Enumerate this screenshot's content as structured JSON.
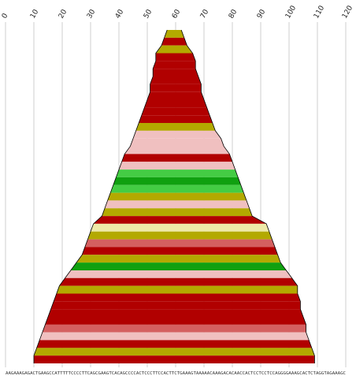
{
  "chart_data": {
    "type": "area",
    "title": "",
    "xlabel": "",
    "ylabel": "",
    "xlim": [
      0,
      120
    ],
    "x_ticks": [
      "0",
      "10",
      "20",
      "30",
      "40",
      "50",
      "60",
      "70",
      "80",
      "90",
      "100",
      "110",
      "120"
    ],
    "sequence": "AAGAAAGAGACTGAAGCCATTTTTCCCCTTCAGCGAAGTCACAGCCCCACTCCCTTCCACTTCTGAAAGTAAAAACAAAGACACAACCACTCCTCCTCCAGGGGAAAGCACTCTAGGTAGAAAGC",
    "grid": true,
    "legend": "none",
    "colors": {
      "deep_red": "#b10000",
      "olive": "#b3a900",
      "pink": "#f0c0c0",
      "light_green": "#44cc44",
      "green": "#10a010",
      "salmon": "#d46060",
      "cream": "#eee9a8"
    },
    "layers": [
      {
        "start": 57,
        "end": 62,
        "color": "olive"
      },
      {
        "start": 56,
        "end": 63,
        "color": "deep_red"
      },
      {
        "start": 55,
        "end": 64,
        "color": "olive"
      },
      {
        "start": 53,
        "end": 66,
        "color": "deep_red"
      },
      {
        "start": 53,
        "end": 67,
        "color": "deep_red"
      },
      {
        "start": 52,
        "end": 67,
        "color": "deep_red"
      },
      {
        "start": 52,
        "end": 68,
        "color": "deep_red"
      },
      {
        "start": 51,
        "end": 69,
        "color": "deep_red"
      },
      {
        "start": 51,
        "end": 69,
        "color": "deep_red"
      },
      {
        "start": 50,
        "end": 70,
        "color": "deep_red"
      },
      {
        "start": 49,
        "end": 71,
        "color": "deep_red"
      },
      {
        "start": 48,
        "end": 72,
        "color": "deep_red"
      },
      {
        "start": 47,
        "end": 73,
        "color": "olive"
      },
      {
        "start": 46,
        "end": 74,
        "color": "pink"
      },
      {
        "start": 45,
        "end": 76,
        "color": "pink"
      },
      {
        "start": 44,
        "end": 77,
        "color": "pink"
      },
      {
        "start": 42,
        "end": 79,
        "color": "deep_red"
      },
      {
        "start": 41,
        "end": 80,
        "color": "pink"
      },
      {
        "start": 40,
        "end": 81,
        "color": "light_green"
      },
      {
        "start": 39,
        "end": 82,
        "color": "green"
      },
      {
        "start": 38,
        "end": 83,
        "color": "light_green"
      },
      {
        "start": 37,
        "end": 84,
        "color": "olive"
      },
      {
        "start": 36,
        "end": 85,
        "color": "pink"
      },
      {
        "start": 35,
        "end": 86,
        "color": "olive"
      },
      {
        "start": 34,
        "end": 87,
        "color": "deep_red"
      },
      {
        "start": 31,
        "end": 92,
        "color": "cream"
      },
      {
        "start": 30,
        "end": 93,
        "color": "olive"
      },
      {
        "start": 29,
        "end": 94,
        "color": "salmon"
      },
      {
        "start": 28,
        "end": 95,
        "color": "deep_red"
      },
      {
        "start": 27,
        "end": 96,
        "color": "olive"
      },
      {
        "start": 25,
        "end": 97,
        "color": "green"
      },
      {
        "start": 23,
        "end": 99,
        "color": "pink"
      },
      {
        "start": 21,
        "end": 101,
        "color": "deep_red"
      },
      {
        "start": 19,
        "end": 103,
        "color": "olive"
      },
      {
        "start": 18,
        "end": 103,
        "color": "deep_red"
      },
      {
        "start": 17,
        "end": 104,
        "color": "deep_red"
      },
      {
        "start": 16,
        "end": 104,
        "color": "deep_red"
      },
      {
        "start": 15,
        "end": 105,
        "color": "deep_red"
      },
      {
        "start": 14,
        "end": 106,
        "color": "salmon"
      },
      {
        "start": 13,
        "end": 106,
        "color": "pink"
      },
      {
        "start": 12,
        "end": 107,
        "color": "deep_red"
      },
      {
        "start": 11,
        "end": 108,
        "color": "olive"
      },
      {
        "start": 10,
        "end": 109,
        "color": "deep_red"
      }
    ]
  }
}
